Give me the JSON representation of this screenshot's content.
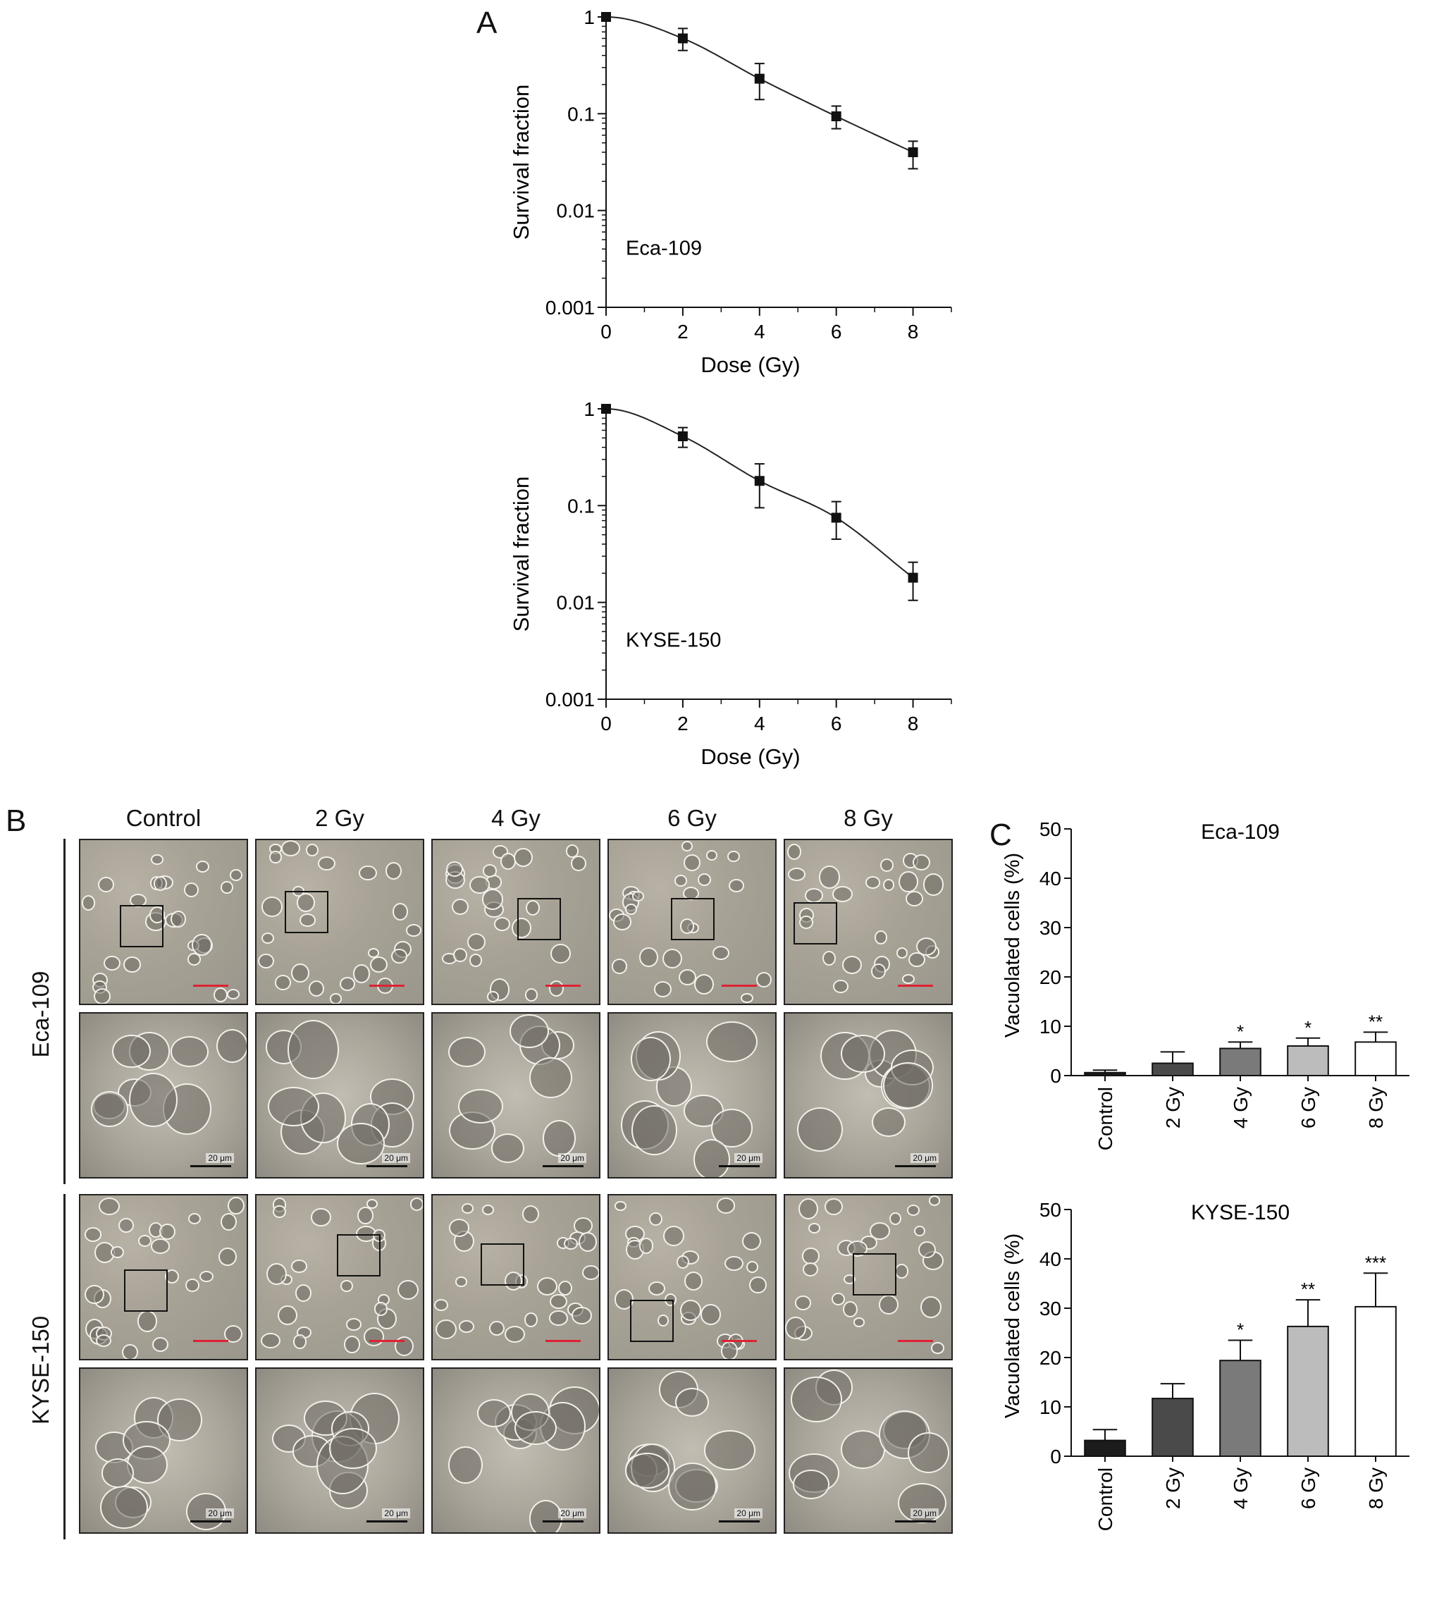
{
  "panels": {
    "A": "A",
    "B": "B",
    "C": "C"
  },
  "chart_data": [
    {
      "type": "scatter",
      "panel": "A",
      "annotation": "Eca-109",
      "xlabel": "Dose (Gy)",
      "ylabel": "Survival fraction",
      "xlim": [
        0,
        9
      ],
      "ylim": [
        0.001,
        1
      ],
      "yscale": "log",
      "x_ticks": [
        "0",
        "2",
        "4",
        "6",
        "8"
      ],
      "y_ticks": [
        "0.001",
        "0.01",
        "0.1",
        "1"
      ],
      "x": [
        0,
        2,
        4,
        6,
        8
      ],
      "y": [
        1.0,
        0.6,
        0.23,
        0.094,
        0.04
      ],
      "err_low": [
        1.0,
        0.45,
        0.14,
        0.07,
        0.027
      ],
      "err_high": [
        1.0,
        0.76,
        0.33,
        0.12,
        0.052
      ],
      "fit_curve": true
    },
    {
      "type": "scatter",
      "panel": "A",
      "annotation": "KYSE-150",
      "xlabel": "Dose (Gy)",
      "ylabel": "Survival fraction",
      "xlim": [
        0,
        9
      ],
      "ylim": [
        0.001,
        1
      ],
      "yscale": "log",
      "x_ticks": [
        "0",
        "2",
        "4",
        "6",
        "8"
      ],
      "y_ticks": [
        "0.001",
        "0.01",
        "0.1",
        "1"
      ],
      "x": [
        0,
        2,
        4,
        6,
        8
      ],
      "y": [
        1.0,
        0.52,
        0.18,
        0.075,
        0.018
      ],
      "err_low": [
        1.0,
        0.4,
        0.095,
        0.045,
        0.0105
      ],
      "err_high": [
        1.0,
        0.64,
        0.27,
        0.11,
        0.026
      ],
      "fit_curve": true
    },
    {
      "type": "bar",
      "panel": "C",
      "title": "Eca-109",
      "ylabel": "Vacuolated cells (%)",
      "ylim": [
        0,
        50
      ],
      "y_ticks": [
        "0",
        "10",
        "20",
        "30",
        "40",
        "50"
      ],
      "categories": [
        "Control",
        "2 Gy",
        "4 Gy",
        "6 Gy",
        "8 Gy"
      ],
      "values": [
        0.6,
        2.5,
        5.5,
        6.0,
        6.8
      ],
      "errors": [
        0.5,
        2.3,
        1.3,
        1.6,
        2.0
      ],
      "significance": [
        "",
        "",
        "*",
        "*",
        "**"
      ],
      "colors": [
        "#1c1c1c",
        "#4a4a4a",
        "#7a7a7a",
        "#bcbcbc",
        "#ffffff"
      ]
    },
    {
      "type": "bar",
      "panel": "C",
      "title": "KYSE-150",
      "ylabel": "Vacuolated cells (%)",
      "ylim": [
        0,
        50
      ],
      "y_ticks": [
        "0",
        "10",
        "20",
        "30",
        "40",
        "50"
      ],
      "categories": [
        "Control",
        "2 Gy",
        "4 Gy",
        "6 Gy",
        "8 Gy"
      ],
      "values": [
        3.2,
        11.7,
        19.4,
        26.3,
        30.3
      ],
      "errors": [
        2.2,
        3.0,
        4.1,
        5.4,
        6.8
      ],
      "significance": [
        "",
        "",
        "*",
        "**",
        "***"
      ],
      "colors": [
        "#1c1c1c",
        "#4a4a4a",
        "#7a7a7a",
        "#bcbcbc",
        "#ffffff"
      ]
    }
  ],
  "micrographs": {
    "columns": [
      "Control",
      "2 Gy",
      "4 Gy",
      "6 Gy",
      "8 Gy"
    ],
    "rows": [
      "Eca-109",
      "KYSE-150"
    ],
    "scale_label": "20 μm"
  }
}
